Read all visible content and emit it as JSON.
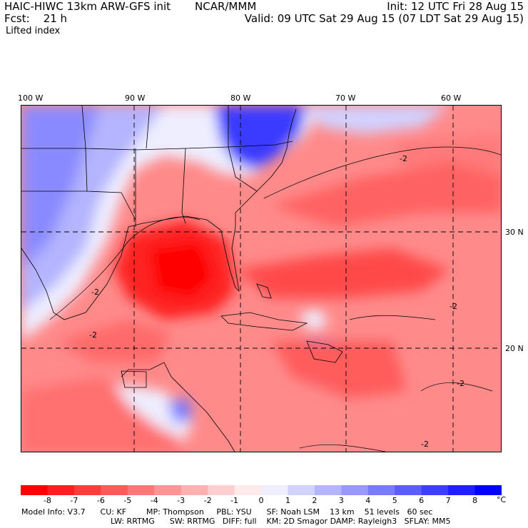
{
  "header": {
    "model": "HAIC-HIWC 13km ARW-GFS init",
    "agency": "NCAR/MMM",
    "init": "Init: 12 UTC Fri 28 Aug 15",
    "fcst": "Fcst:    21 h",
    "valid": "Valid: 09 UTC Sat 29 Aug 15 (07 LDT Sat 29 Aug 15)",
    "field": "Lifted index"
  },
  "map": {
    "lon_labels": [
      "100 W",
      "90 W",
      "80 W",
      "70 W",
      "60 W"
    ],
    "lat_labels": [
      "30 N",
      "20 N"
    ],
    "contour_labels": [
      "-2",
      "-2",
      "-2",
      "-2",
      "-2",
      "-2"
    ]
  },
  "colorbar": {
    "ticks": [
      "-8",
      "-7",
      "-6",
      "-5",
      "-4",
      "-3",
      "-2",
      "-1",
      "0",
      "1",
      "2",
      "3",
      "4",
      "5",
      "6",
      "7",
      "8"
    ],
    "unit": "°C",
    "colors": [
      "#ff0000",
      "#ff1f1f",
      "#ff3c3c",
      "#ff5a5a",
      "#ff7676",
      "#ff9494",
      "#ffb0b0",
      "#ffcece",
      "#ffeaea",
      "#eeeeff",
      "#d2d2ff",
      "#b4b4ff",
      "#9898ff",
      "#7a7aff",
      "#5c5cff",
      "#3e3eff",
      "#2020ff",
      "#0000ff"
    ]
  },
  "footer": {
    "line1": "Model Info: V3.7      CU: KF        MP: Thompson     PBL: YSU      SF: Noah LSM    13 km    51 levels   60 sec",
    "line2": "LW: RRTMG      SW: RRTMG   DIFF: full    KM: 2D Smagor DAMP: Rayleigh3   SFLAY: MM5"
  }
}
